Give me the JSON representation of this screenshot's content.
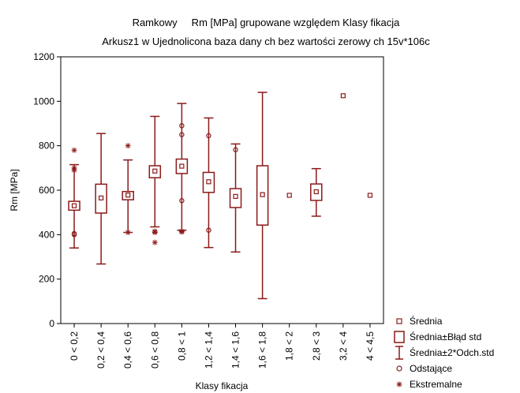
{
  "chart_data": {
    "type": "box",
    "title": "Ramkowy     Rm [MPa] grupowane względem Klasy fikacja",
    "subtitle": "Arkusz1 w Ujednolicona baza dany ch bez wartości zerowy ch 15v*106c",
    "xlabel": "Klasy fikacja",
    "ylabel": "Rm [MPa]",
    "ylim": [
      0,
      1200
    ],
    "yticks": [
      0,
      200,
      400,
      600,
      800,
      1000,
      1200
    ],
    "grid": false,
    "legend_position": "bottom-right",
    "colors": {
      "series": "#8b1a1a"
    },
    "categories": [
      "0 < 0,2",
      "0,2 < 0,4",
      "0,4 < 0,6",
      "0,6 < 0,8",
      "0,8 < 1",
      "1,2 < 1,4",
      "1,4 < 1,6",
      "1,6 < 1,8",
      "1,8 < 2",
      "2,8 < 3",
      "3,2 < 4",
      "4 < 4,5"
    ],
    "boxes": [
      {
        "mean": 530,
        "se_low": 510,
        "se_high": 550,
        "sd2_low": 340,
        "sd2_high": 715,
        "outliers": [
          400,
          405
        ],
        "extremes": [
          780,
          700,
          690
        ]
      },
      {
        "mean": 565,
        "se_low": 497,
        "se_high": 627,
        "sd2_low": 268,
        "sd2_high": 855,
        "outliers": [],
        "extremes": []
      },
      {
        "mean": 578,
        "se_low": 557,
        "se_high": 594,
        "sd2_low": 410,
        "sd2_high": 736,
        "outliers": [],
        "extremes": [
          800,
          410
        ]
      },
      {
        "mean": 686,
        "se_low": 656,
        "se_high": 710,
        "sd2_low": 435,
        "sd2_high": 932,
        "outliers": [],
        "extremes": [
          415,
          410,
          365
        ]
      },
      {
        "mean": 708,
        "se_low": 675,
        "se_high": 740,
        "sd2_low": 420,
        "sd2_high": 990,
        "outliers": [
          890,
          850,
          553
        ],
        "extremes": [
          415,
          412
        ]
      },
      {
        "mean": 638,
        "se_low": 590,
        "se_high": 680,
        "sd2_low": 342,
        "sd2_high": 925,
        "outliers": [
          845,
          420
        ],
        "extremes": []
      },
      {
        "mean": 572,
        "se_low": 522,
        "se_high": 607,
        "sd2_low": 322,
        "sd2_high": 808,
        "outliers": [
          782
        ],
        "extremes": []
      },
      {
        "mean": 580,
        "se_low": 443,
        "se_high": 710,
        "sd2_low": 112,
        "sd2_high": 1040,
        "outliers": [],
        "extremes": []
      },
      {
        "mean": 577,
        "se_low": null,
        "se_high": null,
        "sd2_low": null,
        "sd2_high": null,
        "outliers": [],
        "extremes": []
      },
      {
        "mean": 593,
        "se_low": 554,
        "se_high": 628,
        "sd2_low": 483,
        "sd2_high": 697,
        "outliers": [],
        "extremes": []
      },
      {
        "mean": 1025,
        "se_low": null,
        "se_high": null,
        "sd2_low": null,
        "sd2_high": null,
        "outliers": [],
        "extremes": []
      },
      {
        "mean": 577,
        "se_low": null,
        "se_high": null,
        "sd2_low": null,
        "sd2_high": null,
        "outliers": [],
        "extremes": []
      }
    ],
    "legend": [
      {
        "marker": "mean-square",
        "label": "Średnia"
      },
      {
        "marker": "se-box",
        "label": "Średnia±Błąd std"
      },
      {
        "marker": "sd-whisker",
        "label": "Średnia±2*Odch.std"
      },
      {
        "marker": "outlier-circle",
        "label": "Odstające"
      },
      {
        "marker": "extreme-star",
        "label": "Ekstremalne"
      }
    ]
  }
}
